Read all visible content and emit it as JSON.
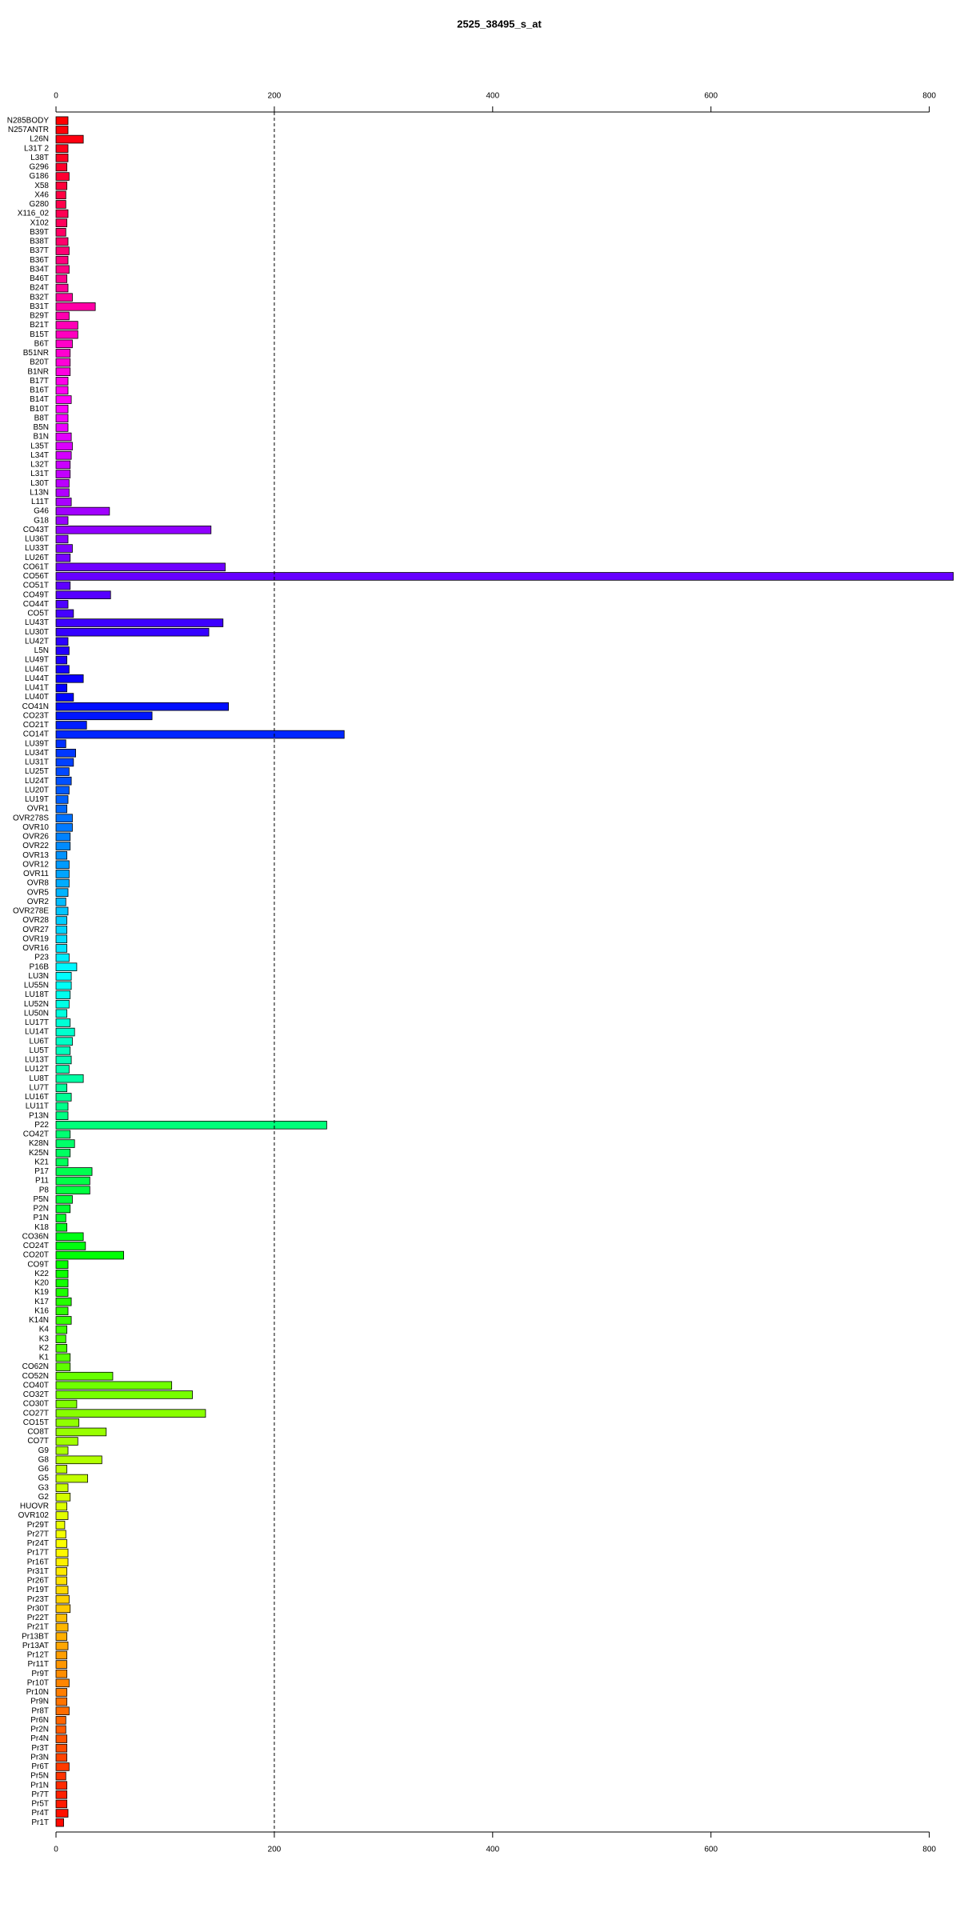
{
  "chart_data": {
    "type": "bar",
    "orientation": "horizontal",
    "title": "2525_38495_s_at",
    "categories": [
      "N285BODY",
      "N257ANTR",
      "L26N",
      "L31T 2",
      "L38T",
      "G296",
      "G186",
      "X58",
      "X46",
      "G280",
      "X116_02",
      "X102",
      "B39T",
      "B38T",
      "B37T",
      "B36T",
      "B34T",
      "B46T",
      "B24T",
      "B32T",
      "B31T",
      "B29T",
      "B21T",
      "B15T",
      "B6T",
      "B51NR",
      "B20T",
      "B1NR",
      "B17T",
      "B16T",
      "B14T",
      "B10T",
      "B8T",
      "B5N",
      "B1N",
      "L35T",
      "L34T",
      "L32T",
      "L31T",
      "L30T",
      "L13N",
      "L11T",
      "G46",
      "G18",
      "CO43T",
      "LU36T",
      "LU33T",
      "LU26T",
      "CO61T",
      "CO56T",
      "CO51T",
      "CO49T",
      "CO44T",
      "CO5T",
      "LU43T",
      "LU30T",
      "LU42T",
      "L5N",
      "LU49T",
      "LU46T",
      "LU44T",
      "LU41T",
      "LU40T",
      "CO41N",
      "CO23T",
      "CO21T",
      "CO14T",
      "LU39T",
      "LU34T",
      "LU31T",
      "LU25T",
      "LU24T",
      "LU20T",
      "LU19T",
      "OVR1",
      "OVR278S",
      "OVR10",
      "OVR26",
      "OVR22",
      "OVR13",
      "OVR12",
      "OVR11",
      "OVR8",
      "OVR5",
      "OVR2",
      "OVR278E",
      "OVR28",
      "OVR27",
      "OVR19",
      "OVR16",
      "P23",
      "P16B",
      "LU3N",
      "LU55N",
      "LU18T",
      "LU52N",
      "LU50N",
      "LU17T",
      "LU14T",
      "LU6T",
      "LU5T",
      "LU13T",
      "LU12T",
      "LU8T",
      "LU7T",
      "LU16T",
      "LU11T",
      "P13N",
      "P22",
      "CO42T",
      "K28N",
      "K25N",
      "K21",
      "P17",
      "P11",
      "P8",
      "P5N",
      "P2N",
      "P1N",
      "K18",
      "CO36N",
      "CO24T",
      "CO20T",
      "CO9T",
      "K22",
      "K20",
      "K19",
      "K17",
      "K16",
      "K14N",
      "K4",
      "K3",
      "K2",
      "K1",
      "CO62N",
      "CO52N",
      "CO40T",
      "CO32T",
      "CO30T",
      "CO27T",
      "CO15T",
      "CO8T",
      "CO7T",
      "G9",
      "G8",
      "G6",
      "G5",
      "G3",
      "G2",
      "HUOVR",
      "OVR102",
      "Pr29T",
      "Pr27T",
      "Pr24T",
      "Pr17T",
      "Pr16T",
      "Pr31T",
      "Pr26T",
      "Pr19T",
      "Pr23T",
      "Pr30T",
      "Pr22T",
      "Pr21T",
      "Pr13BT",
      "Pr13AT",
      "Pr12T",
      "Pr11T",
      "Pr9T",
      "Pr10T",
      "Pr10N",
      "Pr9N",
      "Pr8T",
      "Pr6N",
      "Pr2N",
      "Pr4N",
      "Pr3T",
      "Pr3N",
      "Pr6T",
      "Pr5N",
      "Pr1N",
      "Pr7T",
      "Pr5T",
      "Pr4T",
      "Pr1T"
    ],
    "values": [
      11,
      11,
      25,
      11,
      11,
      10,
      12,
      10,
      9,
      9,
      11,
      10,
      9,
      11,
      12,
      11,
      12,
      10,
      11,
      15,
      36,
      12,
      20,
      20,
      15,
      13,
      13,
      13,
      11,
      11,
      14,
      11,
      11,
      11,
      14,
      15,
      14,
      13,
      13,
      12,
      12,
      14,
      49,
      11,
      142,
      11,
      15,
      13,
      155,
      822,
      13,
      50,
      11,
      16,
      153,
      140,
      11,
      12,
      10,
      12,
      25,
      10,
      16,
      158,
      88,
      28,
      264,
      9,
      18,
      16,
      12,
      14,
      12,
      11,
      10,
      15,
      15,
      13,
      13,
      10,
      12,
      12,
      12,
      11,
      9,
      11,
      10,
      10,
      10,
      10,
      12,
      19,
      14,
      14,
      13,
      12,
      10,
      13,
      17,
      15,
      13,
      14,
      12,
      25,
      10,
      14,
      11,
      11,
      248,
      13,
      17,
      13,
      11,
      33,
      31,
      31,
      15,
      13,
      9,
      10,
      25,
      27,
      62,
      11,
      11,
      11,
      11,
      14,
      11,
      14,
      10,
      9,
      10,
      13,
      13,
      52,
      106,
      125,
      19,
      137,
      21,
      46,
      20,
      11,
      42,
      10,
      29,
      11,
      13,
      10,
      11,
      8,
      9,
      10,
      11,
      11,
      10,
      10,
      11,
      12,
      13,
      10,
      11,
      10,
      11,
      10,
      10,
      10,
      12,
      10,
      10,
      12,
      9,
      9,
      10,
      10,
      10,
      12,
      9,
      10,
      10,
      10,
      11,
      7
    ],
    "color_scheme": "rainbow",
    "xlim": [
      0,
      823
    ],
    "xticks": [
      0,
      200,
      400,
      600,
      800
    ],
    "reference_line": 200
  }
}
